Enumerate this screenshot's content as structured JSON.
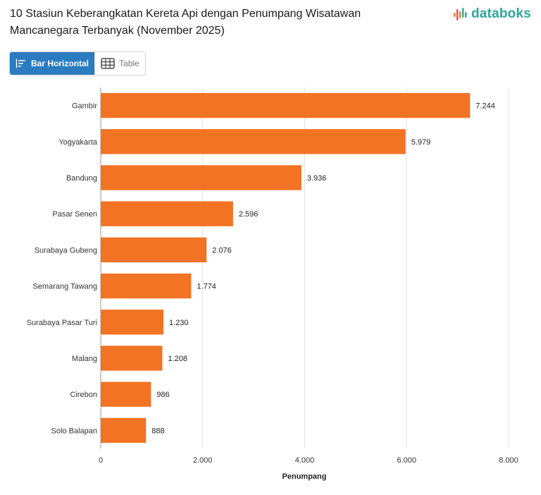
{
  "title": "10 Stasiun Keberangkatan Kereta Api dengan Penumpang Wisatawan Mancanegara Terbanyak (November 2025)",
  "brand": "databoks",
  "brand_color": "#2aa89a",
  "toggle": {
    "bar_label": "Bar Horizontal",
    "table_label": "Table",
    "active_color": "#2a7bbf"
  },
  "bar_color": "#f37324",
  "chart_data": {
    "type": "bar",
    "orientation": "horizontal",
    "categories": [
      "Gambir",
      "Yogyakarta",
      "Bandung",
      "Pasar Senen",
      "Surabaya Gubeng",
      "Semarang Tawang",
      "Surabaya Pasar Turi",
      "Malang",
      "Cirebon",
      "Solo Balapan"
    ],
    "values": [
      7244,
      5979,
      3936,
      2596,
      2076,
      1774,
      1230,
      1208,
      986,
      888
    ],
    "value_labels": [
      "7.244",
      "5.979",
      "3.936",
      "2.596",
      "2.076",
      "1.774",
      "1.230",
      "1.208",
      "986",
      "888"
    ],
    "xlabel": "Penumpang",
    "ylabel": "",
    "xlim": [
      0,
      8000
    ],
    "ticks": [
      0,
      2000,
      4000,
      6000,
      8000
    ],
    "tick_labels": [
      "0",
      "2.000",
      "4.000",
      "6.000",
      "8.000"
    ],
    "grid": true
  }
}
